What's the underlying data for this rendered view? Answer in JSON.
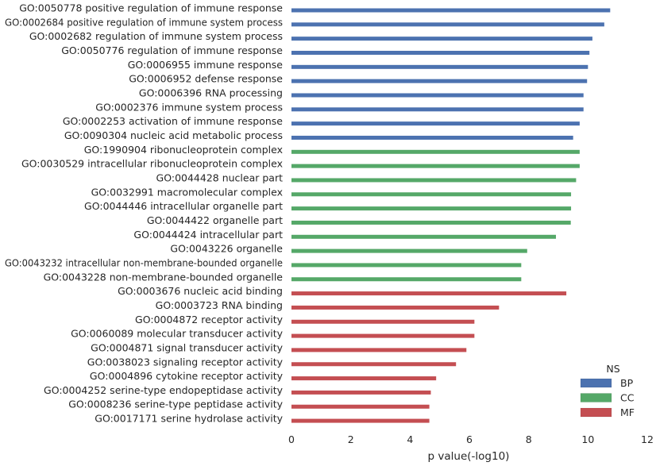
{
  "chart_data": {
    "type": "bar",
    "orientation": "horizontal",
    "title": "",
    "xlabel": "p value(-log10)",
    "ylabel": "",
    "xlim": [
      0,
      12
    ],
    "xticks": [
      0,
      2,
      4,
      6,
      8,
      10,
      12
    ],
    "grid": false,
    "legend": {
      "title": "NS",
      "placement": "bottom-right",
      "entries": [
        {
          "name": "BP",
          "color": "#4c72b0"
        },
        {
          "name": "CC",
          "color": "#55a868"
        },
        {
          "name": "MF",
          "color": "#c44e52"
        }
      ]
    },
    "bars": [
      {
        "term": "GO:0050778 positive regulation of immune response",
        "ns": "BP",
        "value": 10.75
      },
      {
        "term": "GO:0002684 positive regulation of immune system process",
        "ns": "BP",
        "value": 10.55
      },
      {
        "term": "GO:0002682 regulation of immune system process",
        "ns": "BP",
        "value": 10.15
      },
      {
        "term": "GO:0050776 regulation of immune response",
        "ns": "BP",
        "value": 10.05
      },
      {
        "term": "GO:0006955 immune response",
        "ns": "BP",
        "value": 10.0
      },
      {
        "term": "GO:0006952 defense response",
        "ns": "BP",
        "value": 9.97
      },
      {
        "term": "GO:0006396 RNA processing",
        "ns": "BP",
        "value": 9.85
      },
      {
        "term": "GO:0002376 immune system process",
        "ns": "BP",
        "value": 9.85
      },
      {
        "term": "GO:0002253 activation of immune response",
        "ns": "BP",
        "value": 9.72
      },
      {
        "term": "GO:0090304 nucleic acid metabolic process",
        "ns": "BP",
        "value": 9.5
      },
      {
        "term": "GO:1990904 ribonucleoprotein complex",
        "ns": "CC",
        "value": 9.72
      },
      {
        "term": "GO:0030529 intracellular ribonucleoprotein complex",
        "ns": "CC",
        "value": 9.72
      },
      {
        "term": "GO:0044428 nuclear part",
        "ns": "CC",
        "value": 9.6
      },
      {
        "term": "GO:0032991 macromolecular complex",
        "ns": "CC",
        "value": 9.43
      },
      {
        "term": "GO:0044446 intracellular organelle part",
        "ns": "CC",
        "value": 9.43
      },
      {
        "term": "GO:0044422 organelle part",
        "ns": "CC",
        "value": 9.42
      },
      {
        "term": "GO:0044424 intracellular part",
        "ns": "CC",
        "value": 8.92
      },
      {
        "term": "GO:0043226 organelle",
        "ns": "CC",
        "value": 7.95
      },
      {
        "term": "GO:0043232 intracellular non-membrane-bounded organelle",
        "ns": "CC",
        "value": 7.75
      },
      {
        "term": "GO:0043228 non-membrane-bounded organelle",
        "ns": "CC",
        "value": 7.75
      },
      {
        "term": "GO:0003676 nucleic acid binding",
        "ns": "MF",
        "value": 9.27
      },
      {
        "term": "GO:0003723 RNA binding",
        "ns": "MF",
        "value": 7.0
      },
      {
        "term": "GO:0004872 receptor activity",
        "ns": "MF",
        "value": 6.17
      },
      {
        "term": "GO:0060089 molecular transducer activity",
        "ns": "MF",
        "value": 6.17
      },
      {
        "term": "GO:0004871 signal transducer activity",
        "ns": "MF",
        "value": 5.9
      },
      {
        "term": "GO:0038023 signaling receptor activity",
        "ns": "MF",
        "value": 5.55
      },
      {
        "term": "GO:0004896 cytokine receptor activity",
        "ns": "MF",
        "value": 4.88
      },
      {
        "term": "GO:0004252 serine-type endopeptidase activity",
        "ns": "MF",
        "value": 4.7
      },
      {
        "term": "GO:0008236 serine-type peptidase activity",
        "ns": "MF",
        "value": 4.65
      },
      {
        "term": "GO:0017171 serine hydrolase activity",
        "ns": "MF",
        "value": 4.65
      }
    ]
  }
}
